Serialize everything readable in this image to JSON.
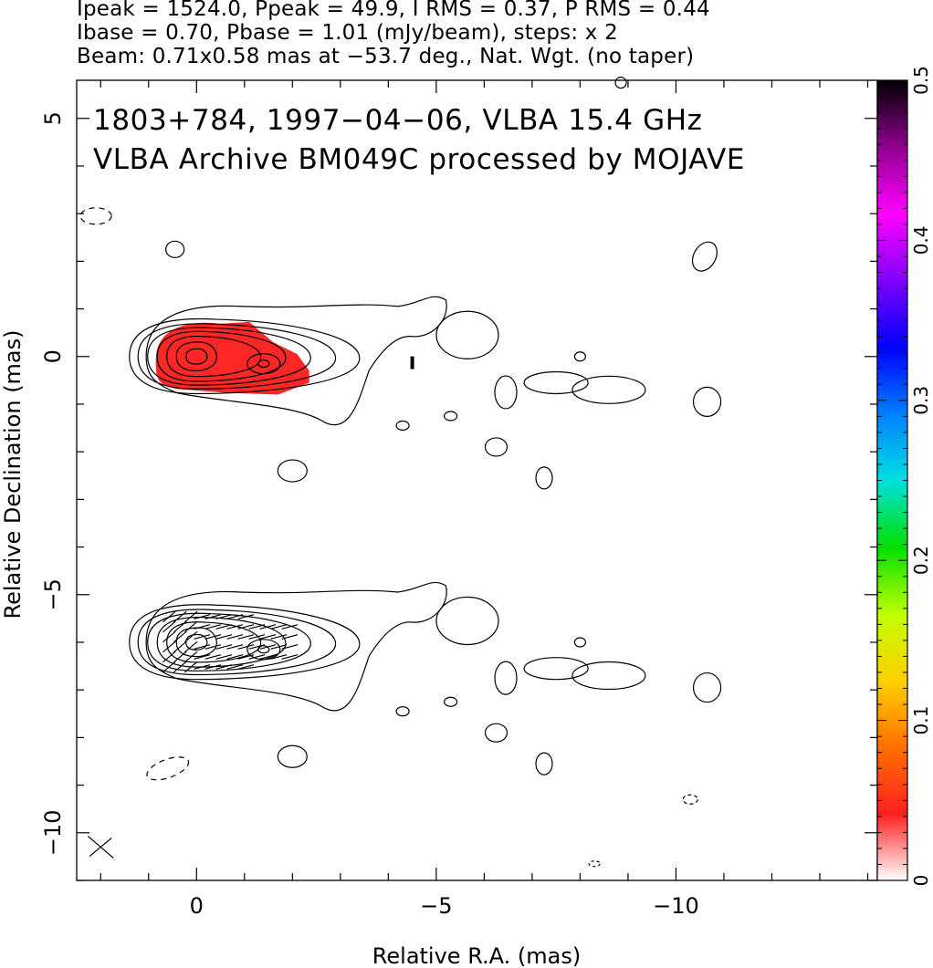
{
  "header": {
    "line1": "Ipeak = 1524.0, Ppeak = 49.9, I RMS = 0.37, P RMS = 0.44",
    "line2": "Ibase = 0.70, Pbase = 1.01 (mJy/beam), steps: x 2",
    "line3": "Beam: 0.71x0.58 mas at −53.7 deg., Nat. Wgt. (no taper)"
  },
  "plot_labels": {
    "source_line": "1803+784, 1997−04−06, VLBA 15.4 GHz",
    "archive_line": "VLBA Archive BM049C processed by MOJAVE"
  },
  "chart_data": {
    "type": "contour",
    "xlabel": "Relative R.A. (mas)",
    "ylabel": "Relative Declination (mas)",
    "xlim": [
      2.5,
      -14.2
    ],
    "ylim": [
      -11,
      5.8
    ],
    "x_ticks": [
      0,
      -5,
      -10
    ],
    "x_tick_labels": [
      "0",
      "−5",
      "−10"
    ],
    "y_ticks": [
      5,
      0,
      -5,
      -10
    ],
    "y_tick_labels": [
      "5",
      "0",
      "−5",
      "−10"
    ],
    "colorbar": {
      "range": [
        0,
        0.5
      ],
      "ticks": [
        0,
        0.1,
        0.2,
        0.3,
        0.4,
        0.5
      ],
      "tick_labels": [
        "0",
        "0.1",
        "0.2",
        "0.3",
        "0.4",
        "0.5"
      ],
      "colors": [
        "#ffffff",
        "#ff2020",
        "#ff7000",
        "#ffd000",
        "#c0ff00",
        "#00e000",
        "#00e0e0",
        "#0080ff",
        "#0000ff",
        "#8000ff",
        "#ff00ff",
        "#900090",
        "#000000"
      ]
    },
    "panels": [
      {
        "name": "upper",
        "center": [
          0,
          0
        ],
        "core_contour_radii_mas": [
          [
            0.22,
            0.16
          ],
          [
            0.42,
            0.3
          ],
          [
            0.62,
            0.42
          ],
          [
            0.82,
            0.52
          ],
          [
            1.02,
            0.6
          ],
          [
            1.22,
            0.68
          ],
          [
            1.4,
            0.78
          ]
        ],
        "secondary_peak": [
          -1.4,
          -0.15
        ],
        "fill_color": "#ff1a1a",
        "fill_region": {
          "x": [
            0.85,
            -2.35
          ],
          "y": [
            0.65,
            -0.8
          ]
        }
      },
      {
        "name": "lower",
        "center": [
          0,
          -6
        ],
        "core_contour_radii_mas": [
          [
            0.22,
            0.16
          ],
          [
            0.42,
            0.3
          ],
          [
            0.62,
            0.42
          ],
          [
            0.82,
            0.52
          ],
          [
            1.02,
            0.6
          ],
          [
            1.22,
            0.68
          ],
          [
            1.4,
            0.78
          ]
        ],
        "secondary_peak": [
          -1.4,
          -6.15
        ],
        "polarization_vectors": true
      }
    ],
    "beam": {
      "major_mas": 0.71,
      "minor_mas": 0.58,
      "pa_deg": -53.7,
      "position": "bottom-left"
    }
  }
}
